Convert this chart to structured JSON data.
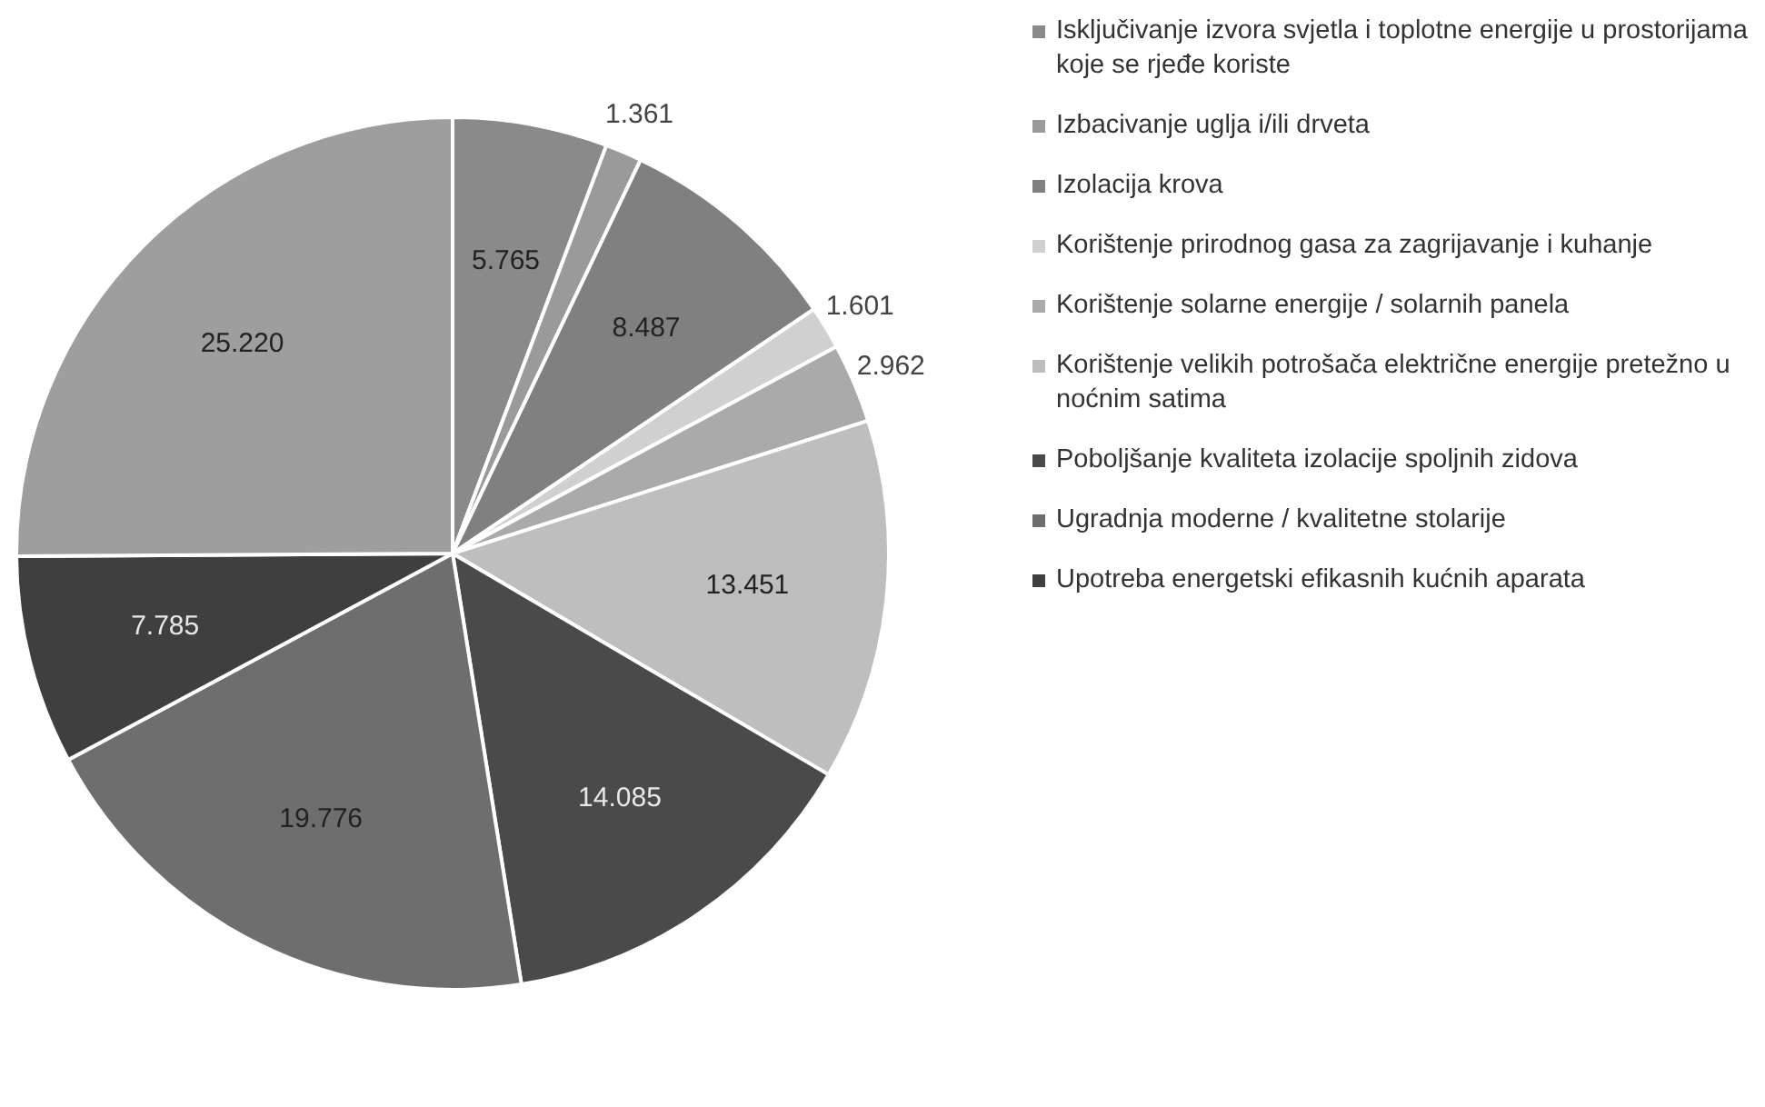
{
  "chart_data": {
    "type": "pie",
    "categories": [
      "Isključivanje izvora svjetla i toplotne energije u prostorijama koje se rjeđe koriste",
      "Izbacivanje uglja i/ili drveta",
      "Izolacija krova",
      "Korištenje prirodnog gasa za zagrijavanje i kuhanje",
      "Korištenje solarne energije / solarnih panela",
      "Korištenje velikih potrošača električne energije pretežno u noćnim satima",
      "Poboljšanje kvaliteta izolacije spoljnih zidova",
      "Ugradnja moderne / kvalitetne stolarije",
      "Upotreba energetski efikasnih kućnih aparata",
      null
    ],
    "values": [
      5.765,
      1.361,
      8.487,
      1.601,
      2.962,
      13.451,
      14.085,
      19.776,
      7.785,
      25.22
    ],
    "value_labels": [
      "5.765",
      "1.361",
      "8.487",
      "1.601",
      "2.962",
      "13.451",
      "14.085",
      "19.776",
      "7.785",
      "25.220"
    ],
    "colors": [
      "#8a8a8a",
      "#9a9a9a",
      "#808080",
      "#d0d0d0",
      "#aaaaaa",
      "#bebebe",
      "#4a4a4a",
      "#6e6e6e",
      "#3f3f3f",
      "#9e9e9e"
    ],
    "legend": "right"
  }
}
